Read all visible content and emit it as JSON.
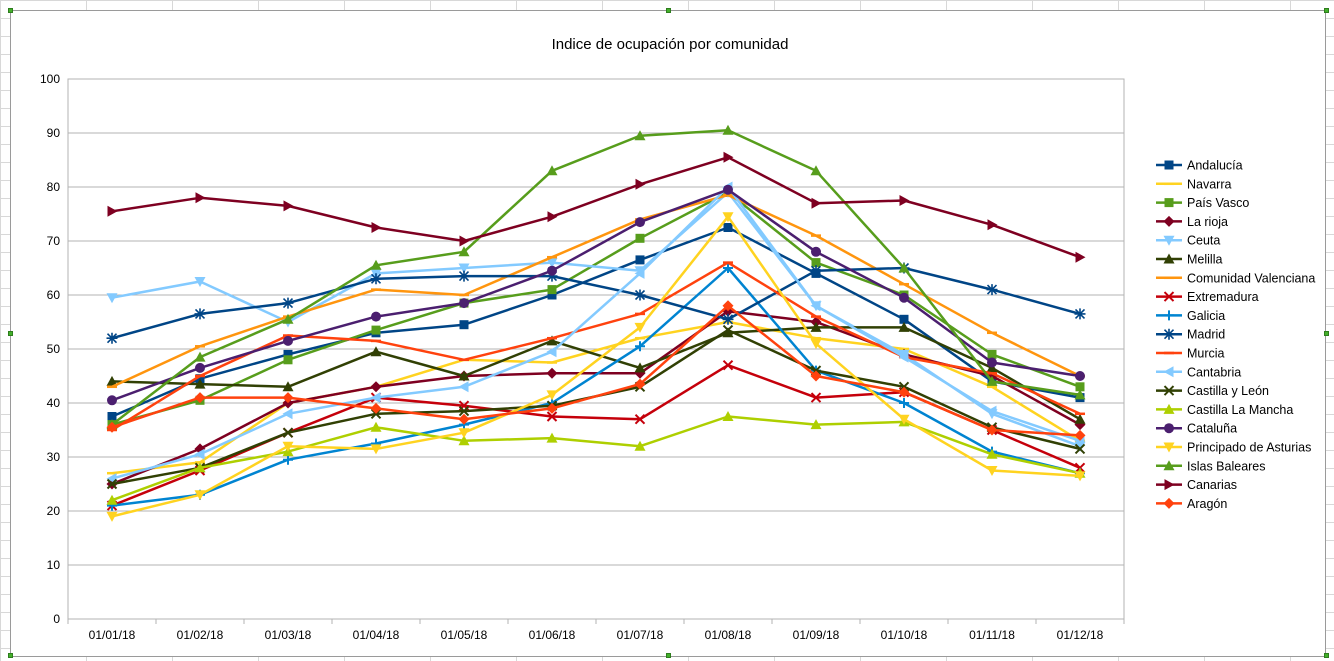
{
  "chart_data": {
    "type": "line",
    "title": "Indice de ocupación por comunidad",
    "xlabel": "",
    "ylabel": "",
    "ylim": [
      0,
      100
    ],
    "yticks": [
      0,
      10,
      20,
      30,
      40,
      50,
      60,
      70,
      80,
      90,
      100
    ],
    "grid": true,
    "legend": "right",
    "categories": [
      "01/01/18",
      "01/02/18",
      "01/03/18",
      "01/04/18",
      "01/05/18",
      "01/06/18",
      "01/07/18",
      "01/08/18",
      "01/09/18",
      "01/10/18",
      "01/11/18",
      "01/12/18"
    ],
    "series": [
      {
        "name": "Andalucía",
        "color": "#004586",
        "marker": "square",
        "values": [
          37.5,
          44.5,
          49,
          53,
          54.5,
          60,
          66.5,
          72.5,
          64,
          55.5,
          44,
          41
        ]
      },
      {
        "name": "Navarra",
        "color": "#ffd320",
        "marker": "line",
        "values": [
          27,
          29,
          40,
          43,
          48,
          47.5,
          52,
          55,
          52,
          50,
          43,
          33
        ]
      },
      {
        "name": "País Vasco",
        "color": "#579d1c",
        "marker": "square",
        "values": [
          36,
          40.5,
          48,
          53.5,
          58.5,
          61,
          70.5,
          79,
          66,
          60,
          49,
          43
        ]
      },
      {
        "name": "La rioja",
        "color": "#7e0021",
        "marker": "diamond",
        "values": [
          25,
          31.5,
          40,
          43,
          45,
          45.5,
          45.5,
          57,
          55,
          49,
          45,
          36
        ]
      },
      {
        "name": "Ceuta",
        "color": "#83caff",
        "marker": "triangle-down",
        "values": [
          59.5,
          62.5,
          55,
          64,
          65,
          66,
          64.5,
          79,
          58,
          49,
          38,
          32
        ]
      },
      {
        "name": "Melilla",
        "color": "#314004",
        "marker": "triangle",
        "values": [
          44,
          43.5,
          43,
          49.5,
          45,
          51.5,
          46.5,
          53,
          54,
          54,
          46.5,
          37
        ]
      },
      {
        "name": "Comunidad Valenciana",
        "color": "#ff950e",
        "marker": "line",
        "values": [
          43,
          50.5,
          56,
          61,
          60,
          67,
          74,
          78.5,
          71,
          62,
          53,
          45
        ]
      },
      {
        "name": "Extremadura",
        "color": "#c5000b",
        "marker": "x",
        "values": [
          21,
          27.5,
          34.5,
          41,
          39.5,
          37.5,
          37,
          47,
          41,
          42,
          35,
          28
        ]
      },
      {
        "name": "Galicia",
        "color": "#0084d1",
        "marker": "plus",
        "values": [
          21,
          23,
          29.5,
          32.5,
          36,
          40,
          50.5,
          65,
          46,
          40,
          31,
          27
        ]
      },
      {
        "name": "Madrid",
        "color": "#004586",
        "marker": "star",
        "values": [
          52,
          56.5,
          58.5,
          63,
          63.5,
          63.5,
          60,
          55.5,
          64.5,
          65,
          61,
          56.5
        ]
      },
      {
        "name": "Murcia",
        "color": "#ff420e",
        "marker": "line",
        "values": [
          35,
          45,
          52.5,
          51.5,
          48,
          52,
          56.5,
          66,
          56,
          48.5,
          45.5,
          38
        ]
      },
      {
        "name": "Cantabria",
        "color": "#83caff",
        "marker": "triangle-left",
        "values": [
          26,
          30.5,
          38,
          41,
          43,
          49.5,
          64,
          80,
          58,
          48.5,
          38.5,
          33
        ]
      },
      {
        "name": "Castilla y León",
        "color": "#314004",
        "marker": "x",
        "values": [
          25,
          28,
          34.5,
          38,
          38.5,
          39.5,
          43,
          53.5,
          46,
          43,
          35.5,
          31.5
        ]
      },
      {
        "name": "Castilla La Mancha",
        "color": "#aecf00",
        "marker": "triangle",
        "values": [
          22,
          28,
          31,
          35.5,
          33,
          33.5,
          32,
          37.5,
          36,
          36.5,
          30.5,
          27
        ]
      },
      {
        "name": "Cataluña",
        "color": "#4b1f6f",
        "marker": "circle",
        "values": [
          40.5,
          46.5,
          51.5,
          56,
          58.5,
          64.5,
          73.5,
          79.5,
          68,
          59.5,
          47.5,
          45
        ]
      },
      {
        "name": "Principado de Asturias",
        "color": "#ffd320",
        "marker": "triangle-down",
        "values": [
          19,
          23,
          32,
          31.5,
          34.5,
          41.5,
          54,
          74.5,
          51,
          37,
          27.5,
          26.5
        ]
      },
      {
        "name": "Islas Baleares",
        "color": "#579d1c",
        "marker": "triangle",
        "values": [
          36,
          48.5,
          55.5,
          65.5,
          68,
          83,
          89.5,
          90.5,
          83,
          65,
          44,
          41.5
        ]
      },
      {
        "name": "Canarias",
        "color": "#7e0021",
        "marker": "triangle-right",
        "values": [
          75.5,
          78,
          76.5,
          72.5,
          70,
          74.5,
          80.5,
          85.5,
          77,
          77.5,
          73,
          67
        ]
      },
      {
        "name": "Aragón",
        "color": "#ff420e",
        "marker": "diamond",
        "values": [
          35.5,
          41,
          41,
          39,
          37,
          39,
          43.5,
          58,
          45,
          42,
          35,
          34
        ]
      }
    ]
  }
}
